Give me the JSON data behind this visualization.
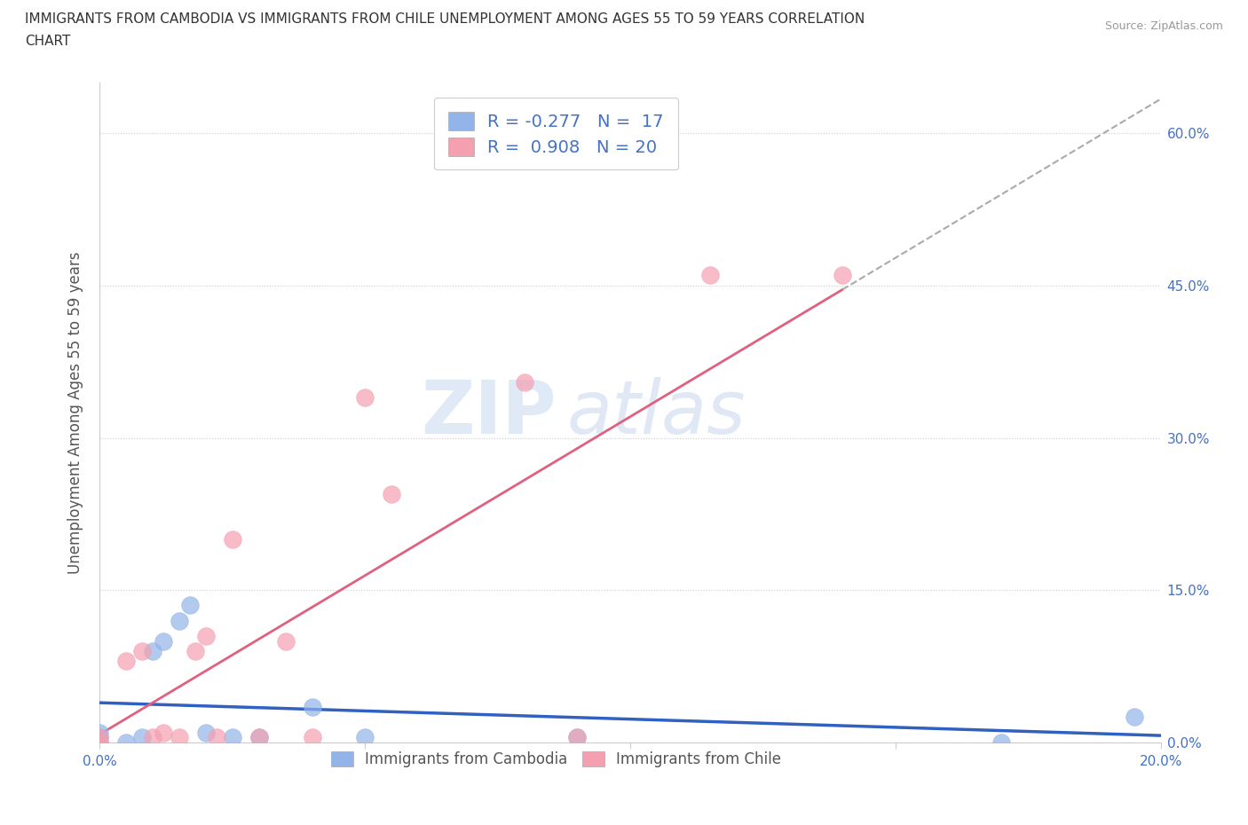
{
  "title_line1": "IMMIGRANTS FROM CAMBODIA VS IMMIGRANTS FROM CHILE UNEMPLOYMENT AMONG AGES 55 TO 59 YEARS CORRELATION",
  "title_line2": "CHART",
  "source": "Source: ZipAtlas.com",
  "ylabel": "Unemployment Among Ages 55 to 59 years",
  "xlim": [
    0.0,
    0.2
  ],
  "ylim": [
    0.0,
    0.65
  ],
  "xticks": [
    0.0,
    0.05,
    0.1,
    0.15,
    0.2
  ],
  "xticklabels": [
    "0.0%",
    "",
    "",
    "",
    "20.0%"
  ],
  "yticks": [
    0.0,
    0.15,
    0.3,
    0.45,
    0.6
  ],
  "yticklabels": [
    "0.0%",
    "15.0%",
    "30.0%",
    "45.0%",
    "60.0%"
  ],
  "cambodia_color": "#92b4e8",
  "chile_color": "#f4a0b0",
  "cambodia_line_color": "#3060c0",
  "chile_line_color": "#e06080",
  "cambodia_R": -0.277,
  "cambodia_N": 17,
  "chile_R": 0.908,
  "chile_N": 20,
  "watermark_zip": "ZIP",
  "watermark_atlas": "atlas",
  "background_color": "#ffffff",
  "grid_color": "#cccccc",
  "legend_label_cambodia": "Immigrants from Cambodia",
  "legend_label_chile": "Immigrants from Chile",
  "tick_color": "#4472c4",
  "cambodia_x": [
    0.0,
    0.0,
    0.0,
    0.005,
    0.008,
    0.01,
    0.012,
    0.015,
    0.017,
    0.02,
    0.025,
    0.03,
    0.04,
    0.05,
    0.09,
    0.17,
    0.195
  ],
  "cambodia_y": [
    0.0,
    0.005,
    0.01,
    0.0,
    0.005,
    0.09,
    0.1,
    0.12,
    0.135,
    0.01,
    0.005,
    0.005,
    0.035,
    0.005,
    0.005,
    0.0,
    0.025
  ],
  "chile_x": [
    0.0,
    0.0,
    0.005,
    0.008,
    0.01,
    0.012,
    0.015,
    0.018,
    0.02,
    0.022,
    0.025,
    0.03,
    0.035,
    0.04,
    0.05,
    0.055,
    0.08,
    0.09,
    0.115,
    0.14
  ],
  "chile_y": [
    0.0,
    0.005,
    0.08,
    0.09,
    0.005,
    0.01,
    0.005,
    0.09,
    0.105,
    0.005,
    0.2,
    0.005,
    0.1,
    0.005,
    0.34,
    0.245,
    0.355,
    0.005,
    0.46,
    0.46
  ]
}
